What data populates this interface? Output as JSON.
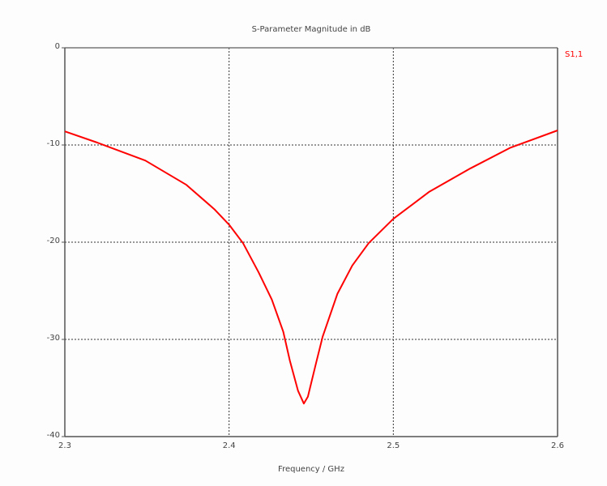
{
  "chart_data": {
    "type": "line",
    "title": "S-Parameter Magnitude in dB",
    "xlabel": "Frequency / GHz",
    "ylabel": "",
    "xlim": [
      2.3,
      2.6
    ],
    "ylim": [
      -40,
      0
    ],
    "xticks": [
      "2.3",
      "2.4",
      "2.5",
      "2.6"
    ],
    "yticks": [
      "0",
      "-10",
      "-20",
      "-30",
      "-40"
    ],
    "grid": true,
    "legend": "top-right",
    "series": [
      {
        "name": "S1,1",
        "color": "#ff0000",
        "x": [
          2.3,
          2.3197,
          2.349,
          2.374,
          2.391,
          2.4,
          2.4085,
          2.418,
          2.426,
          2.433,
          2.437,
          2.442,
          2.4455,
          2.448,
          2.453,
          2.457,
          2.466,
          2.475,
          2.485,
          2.5,
          2.522,
          2.547,
          2.571,
          2.6
        ],
        "y": [
          -8.6,
          -9.75,
          -11.6,
          -14.1,
          -16.6,
          -18.2,
          -20.1,
          -23.1,
          -25.9,
          -29.2,
          -32.2,
          -35.3,
          -36.6,
          -35.9,
          -32.4,
          -29.7,
          -25.3,
          -22.4,
          -20.1,
          -17.6,
          -14.8,
          -12.4,
          -10.3,
          -8.5
        ]
      }
    ]
  }
}
